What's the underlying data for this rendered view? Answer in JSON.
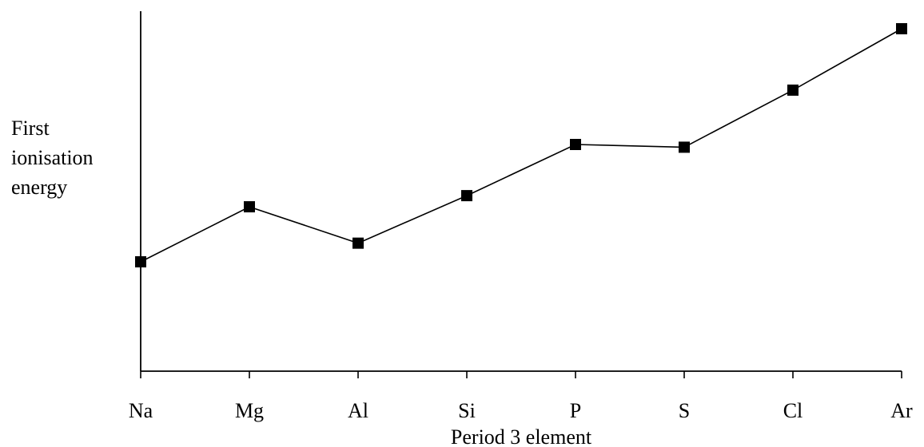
{
  "chart_data": {
    "type": "line",
    "categories": [
      "Na",
      "Mg",
      "Al",
      "Si",
      "P",
      "S",
      "Cl",
      "Ar"
    ],
    "values": [
      496,
      738,
      578,
      787,
      1012,
      1000,
      1251,
      1521
    ],
    "title": "",
    "xlabel": "Period 3 element",
    "ylabel_lines": [
      "First",
      "ionisation",
      "energy"
    ],
    "y_ticks_shown": false,
    "grid": false,
    "marker": "square",
    "colors": {
      "line": "#000000",
      "marker": "#000000",
      "axis": "#000000"
    }
  }
}
